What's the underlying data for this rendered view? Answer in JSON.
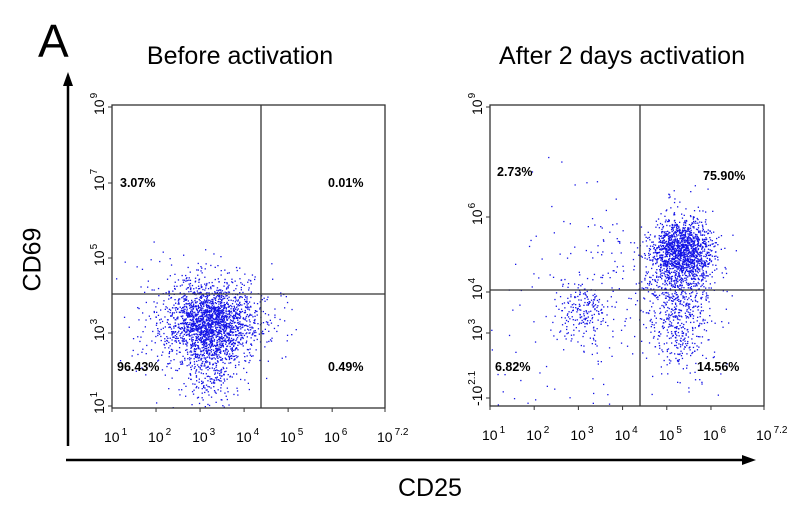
{
  "figure": {
    "panel_letter": "A",
    "y_axis_label": "CD69",
    "x_axis_label": "CD25"
  },
  "chart_data": [
    {
      "type": "scatter",
      "title": "Before activation",
      "xlabel": "CD25",
      "ylabel": "CD69",
      "x_scale": "log",
      "y_scale": "log",
      "xlim": [
        10,
        15848931.9
      ],
      "ylim": [
        10,
        1000000000
      ],
      "x_ticks": [
        {
          "base": "10",
          "exp": "1"
        },
        {
          "base": "10",
          "exp": "2"
        },
        {
          "base": "10",
          "exp": "3"
        },
        {
          "base": "10",
          "exp": "4"
        },
        {
          "base": "10",
          "exp": "5"
        },
        {
          "base": "10",
          "exp": "6"
        },
        {
          "base": "10",
          "exp": "7.2"
        }
      ],
      "y_ticks": [
        {
          "base": "10",
          "exp": "9"
        },
        {
          "base": "10",
          "exp": "7"
        },
        {
          "base": "10",
          "exp": "5"
        },
        {
          "base": "10",
          "exp": "3"
        },
        {
          "base": "10",
          "exp": "1"
        }
      ],
      "gate": {
        "x": 25000,
        "y": 10000
      },
      "quadrants": {
        "upper_left": "3.07%",
        "upper_right": "0.01%",
        "lower_left": "96.43%",
        "lower_right": "0.49%"
      },
      "point_color": "#1414e6",
      "grid": false
    },
    {
      "type": "scatter",
      "title": "After 2 days activation",
      "xlabel": "CD25",
      "ylabel": "CD69",
      "x_scale": "log",
      "y_scale": "log",
      "xlim": [
        10,
        15848931.9
      ],
      "ylim": [
        -125.9,
        1000000000
      ],
      "x_ticks": [
        {
          "base": "10",
          "exp": "1"
        },
        {
          "base": "10",
          "exp": "2"
        },
        {
          "base": "10",
          "exp": "3"
        },
        {
          "base": "10",
          "exp": "4"
        },
        {
          "base": "10",
          "exp": "5"
        },
        {
          "base": "10",
          "exp": "6"
        },
        {
          "base": "10",
          "exp": "7.2"
        }
      ],
      "y_ticks": [
        {
          "base": "10",
          "exp": "9"
        },
        {
          "base": "10",
          "exp": "6"
        },
        {
          "base": "10",
          "exp": "4"
        },
        {
          "base": "10",
          "exp": "3"
        },
        {
          "base": "-10",
          "exp": "2.1"
        }
      ],
      "gate": {
        "x": 25000,
        "y": 10000
      },
      "quadrants": {
        "upper_left": "2.73%",
        "upper_right": "75.90%",
        "lower_left": "6.82%",
        "lower_right": "14.56%"
      },
      "point_color": "#1414e6",
      "grid": false
    }
  ]
}
